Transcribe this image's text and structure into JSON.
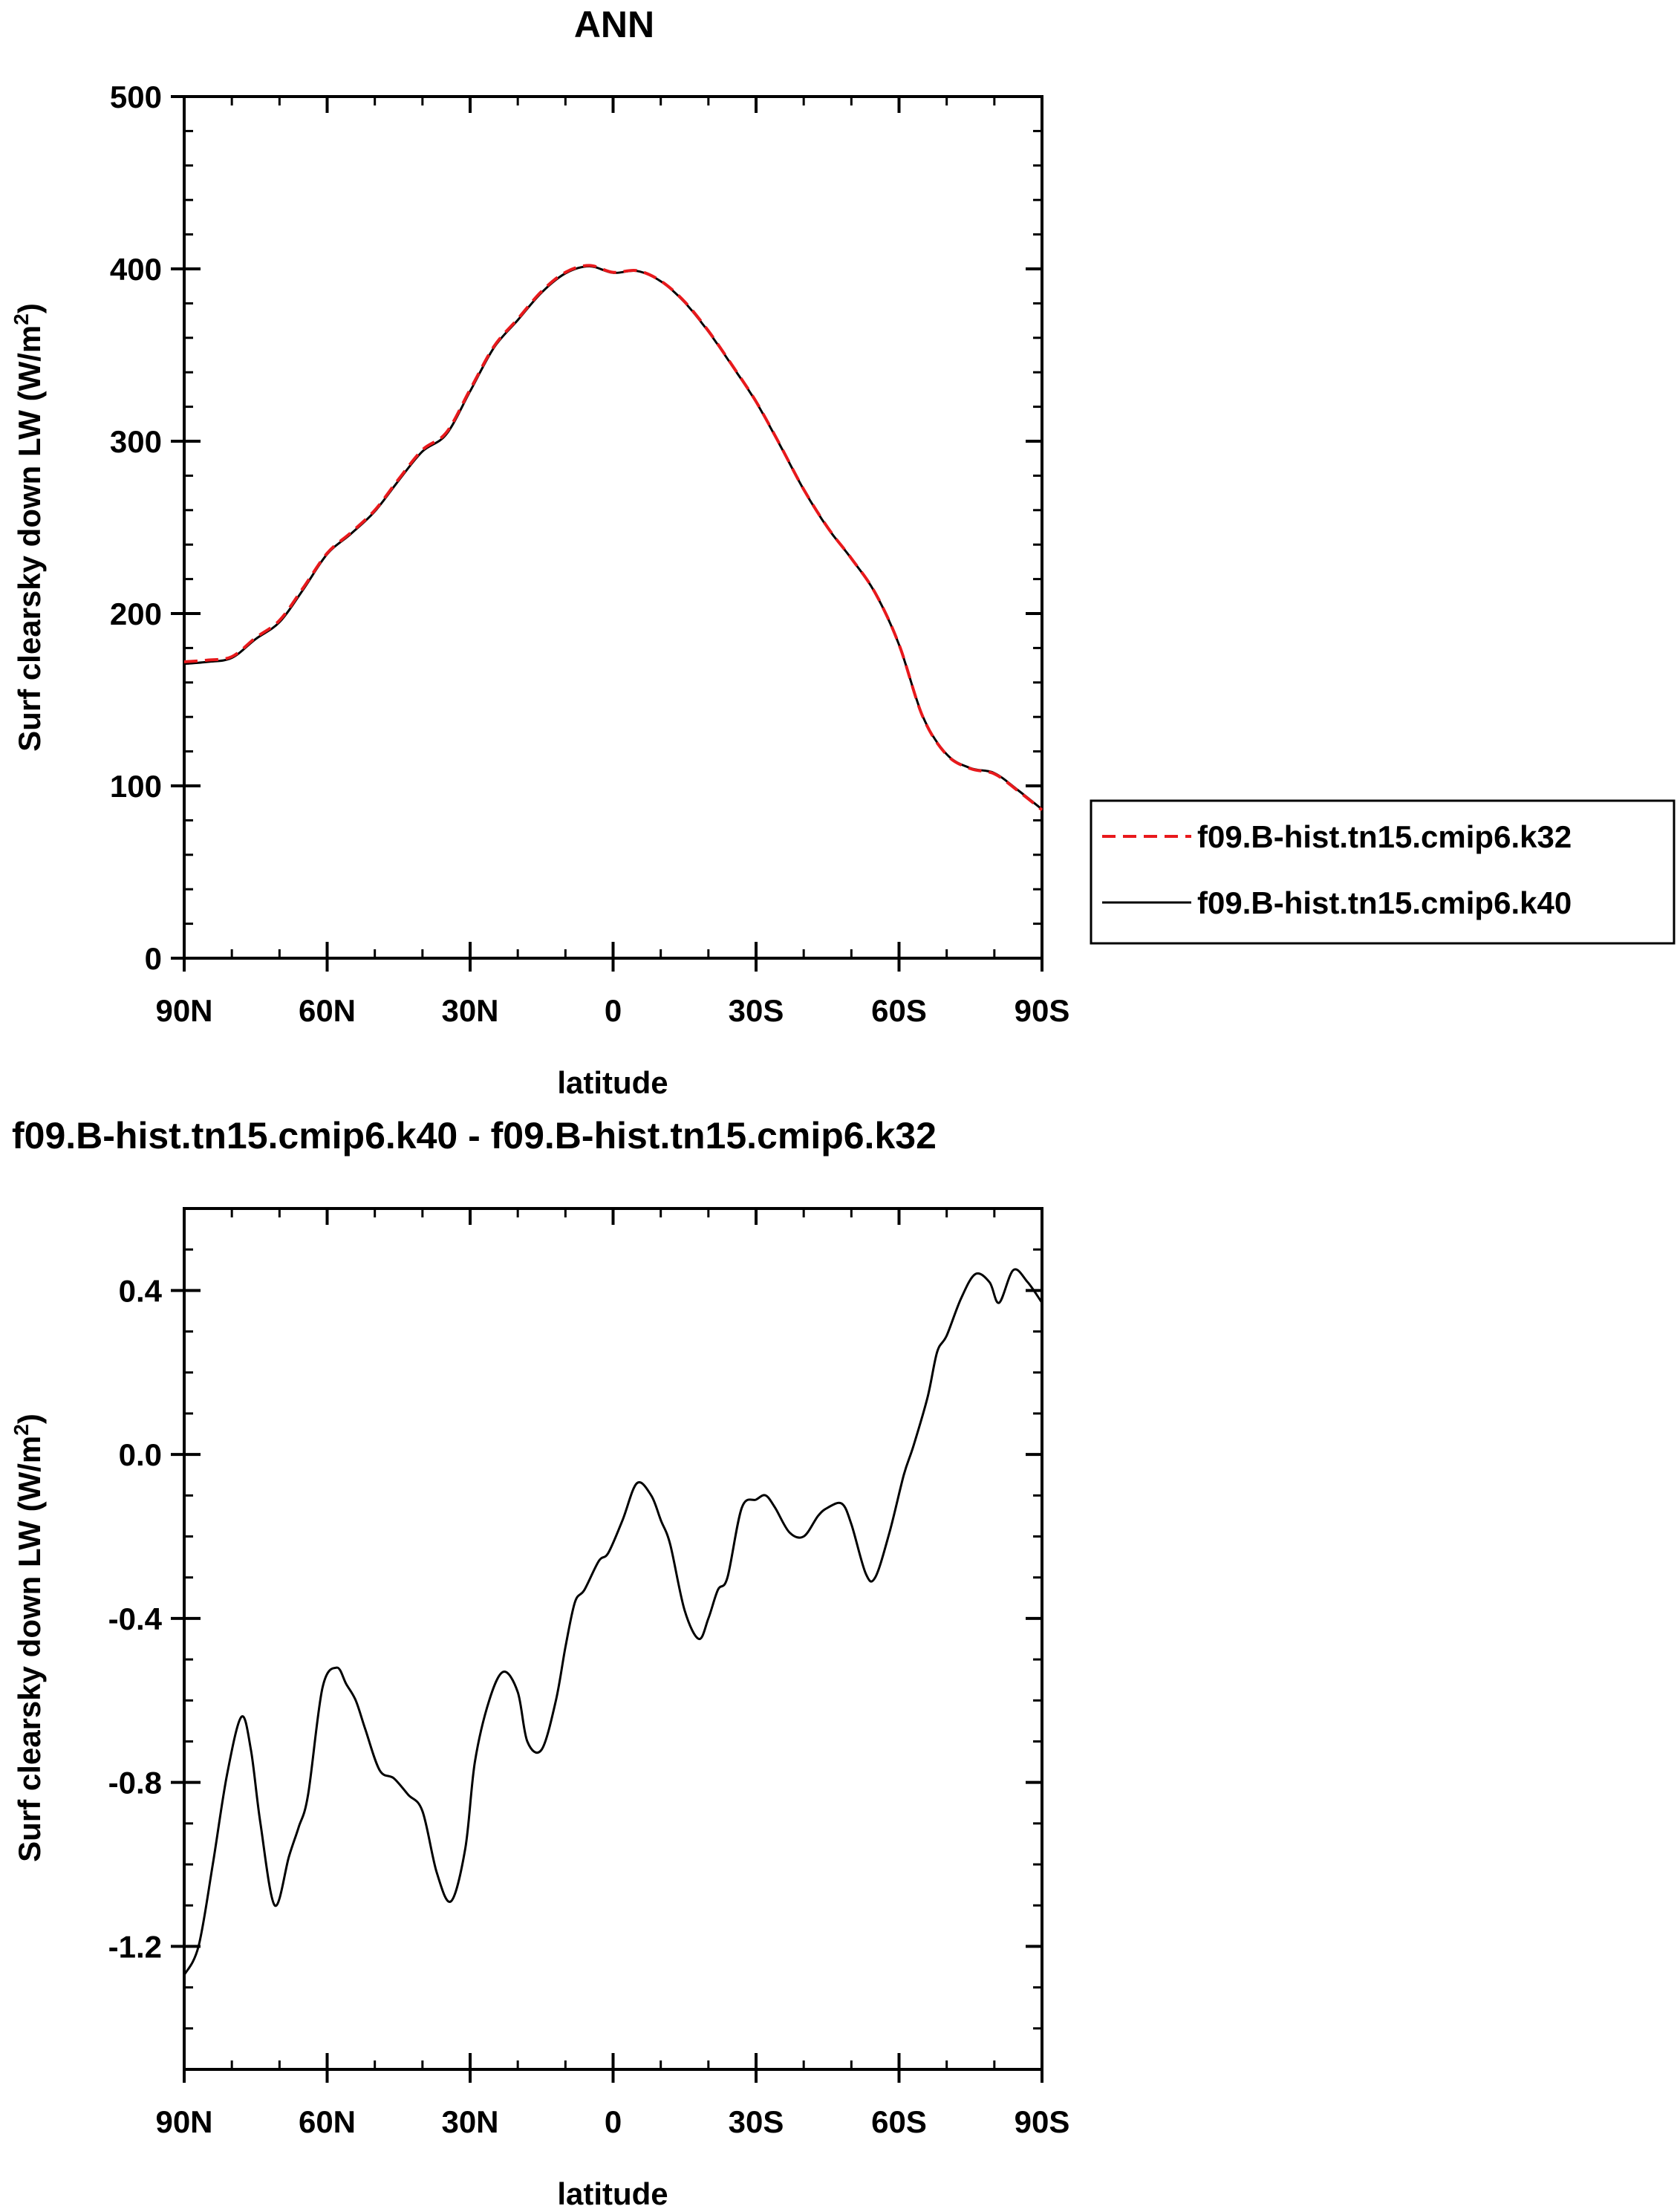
{
  "chart_data": [
    {
      "type": "line",
      "title": "ANN",
      "xlabel": "latitude",
      "ylabel": "Surf clearsky down LW (W/m",
      "ylabel_superscript": "2",
      "ylabel_close": ")",
      "xlim": [
        90,
        -90
      ],
      "ylim": [
        0,
        500
      ],
      "x_ticks": [
        {
          "value": 90,
          "label": "90N"
        },
        {
          "value": 60,
          "label": "60N"
        },
        {
          "value": 30,
          "label": "30N"
        },
        {
          "value": 0,
          "label": "0"
        },
        {
          "value": -30,
          "label": "30S"
        },
        {
          "value": -60,
          "label": "60S"
        },
        {
          "value": -90,
          "label": "90S"
        }
      ],
      "y_ticks": [
        {
          "value": 0,
          "label": "0"
        },
        {
          "value": 100,
          "label": "100"
        },
        {
          "value": 200,
          "label": "200"
        },
        {
          "value": 300,
          "label": "300"
        },
        {
          "value": 400,
          "label": "400"
        },
        {
          "value": 500,
          "label": "500"
        }
      ],
      "x_minor_step": 10,
      "y_minor_step": 20,
      "legend": {
        "position": "right",
        "entries": [
          {
            "name": "f09.B-hist.tn15.cmip6.k32",
            "color": "#e8191c",
            "style": "dashed"
          },
          {
            "name": "f09.B-hist.tn15.cmip6.k40",
            "color": "#000000",
            "style": "solid"
          }
        ]
      },
      "series": [
        {
          "name": "f09.B-hist.tn15.cmip6.k32",
          "color": "#e8191c",
          "style": "dashed",
          "x": [
            90,
            85,
            80,
            75,
            70,
            65,
            60,
            55,
            50,
            45,
            40,
            35,
            30,
            25,
            20,
            15,
            10,
            5,
            0,
            -5,
            -10,
            -15,
            -20,
            -25,
            -30,
            -35,
            -40,
            -45,
            -50,
            -55,
            -60,
            -65,
            -70,
            -75,
            -80,
            -85,
            -90
          ],
          "y": [
            172,
            173,
            175,
            186,
            196,
            215,
            235,
            247,
            260,
            278,
            295,
            305,
            330,
            355,
            371,
            387,
            398,
            402,
            398,
            399,
            393,
            381,
            364,
            344,
            323,
            298,
            272,
            250,
            232,
            212,
            182,
            140,
            118,
            110,
            107,
            97,
            86
          ]
        },
        {
          "name": "f09.B-hist.tn15.cmip6.k40",
          "color": "#000000",
          "style": "solid",
          "x": [
            90,
            85,
            80,
            75,
            70,
            65,
            60,
            55,
            50,
            45,
            40,
            35,
            30,
            25,
            20,
            15,
            10,
            5,
            0,
            -5,
            -10,
            -15,
            -20,
            -25,
            -30,
            -35,
            -40,
            -45,
            -50,
            -55,
            -60,
            -65,
            -70,
            -75,
            -80,
            -85,
            -90
          ],
          "y": [
            170.8,
            172,
            174.3,
            185.2,
            195,
            214,
            234.5,
            246.3,
            259.3,
            277.2,
            294.1,
            304,
            329,
            354.3,
            370.3,
            386.3,
            397.4,
            401.5,
            397.7,
            398.8,
            392.8,
            380.6,
            363.6,
            343.7,
            322.8,
            297.8,
            271.9,
            249.8,
            231.9,
            211.9,
            181.9,
            140.2,
            118.3,
            110.3,
            107.4,
            97.4,
            86.4
          ]
        }
      ]
    },
    {
      "type": "line",
      "title": "f09.B-hist.tn15.cmip6.k40 - f09.B-hist.tn15.cmip6.k32",
      "xlabel": "latitude",
      "ylabel": "Surf clearsky down LW (W/m",
      "ylabel_superscript": "2",
      "ylabel_close": ")",
      "xlim": [
        90,
        -90
      ],
      "ylim": [
        -1.5,
        0.6
      ],
      "x_ticks": [
        {
          "value": 90,
          "label": "90N"
        },
        {
          "value": 60,
          "label": "60N"
        },
        {
          "value": 30,
          "label": "30N"
        },
        {
          "value": 0,
          "label": "0"
        },
        {
          "value": -30,
          "label": "30S"
        },
        {
          "value": -60,
          "label": "60S"
        },
        {
          "value": -90,
          "label": "90S"
        }
      ],
      "y_ticks": [
        {
          "value": -1.2,
          "label": "-1.2"
        },
        {
          "value": -0.8,
          "label": "-0.8"
        },
        {
          "value": -0.4,
          "label": "-0.4"
        },
        {
          "value": 0.0,
          "label": "0.0"
        },
        {
          "value": 0.4,
          "label": "0.4"
        }
      ],
      "x_minor_step": 10,
      "y_minor_step": 0.1,
      "series": [
        {
          "name": "f09.B-hist.tn15.cmip6.k40 - f09.B-hist.tn15.cmip6.k32",
          "color": "#000000",
          "style": "solid",
          "x": [
            90,
            87,
            84,
            81,
            78,
            76,
            74,
            71,
            68,
            66,
            64,
            61,
            58,
            56,
            54,
            52,
            49,
            46,
            43,
            40,
            37,
            34,
            31,
            29,
            26,
            23,
            20,
            18,
            15,
            12,
            10,
            8,
            6,
            3,
            1,
            -2,
            -5,
            -8,
            -10,
            -12,
            -15,
            -18,
            -20,
            -22,
            -24,
            -27,
            -30,
            -32,
            -34,
            -37,
            -40,
            -43,
            -45,
            -48,
            -50,
            -53,
            -55,
            -58,
            -61,
            -63,
            -66,
            -68,
            -70,
            -73,
            -76,
            -79,
            -81,
            -84,
            -87,
            -90
          ],
          "y": [
            -1.27,
            -1.2,
            -1.0,
            -0.78,
            -0.64,
            -0.72,
            -0.9,
            -1.1,
            -0.98,
            -0.91,
            -0.83,
            -0.57,
            -0.52,
            -0.56,
            -0.6,
            -0.67,
            -0.77,
            -0.79,
            -0.83,
            -0.87,
            -1.02,
            -1.09,
            -0.96,
            -0.75,
            -0.6,
            -0.53,
            -0.58,
            -0.7,
            -0.72,
            -0.6,
            -0.47,
            -0.36,
            -0.33,
            -0.26,
            -0.24,
            -0.16,
            -0.07,
            -0.1,
            -0.16,
            -0.22,
            -0.38,
            -0.45,
            -0.4,
            -0.33,
            -0.3,
            -0.13,
            -0.11,
            -0.1,
            -0.13,
            -0.19,
            -0.2,
            -0.15,
            -0.13,
            -0.12,
            -0.17,
            -0.29,
            -0.3,
            -0.19,
            -0.05,
            0.02,
            0.14,
            0.25,
            0.29,
            0.38,
            0.44,
            0.42,
            0.37,
            0.45,
            0.42,
            0.37
          ]
        }
      ]
    }
  ]
}
